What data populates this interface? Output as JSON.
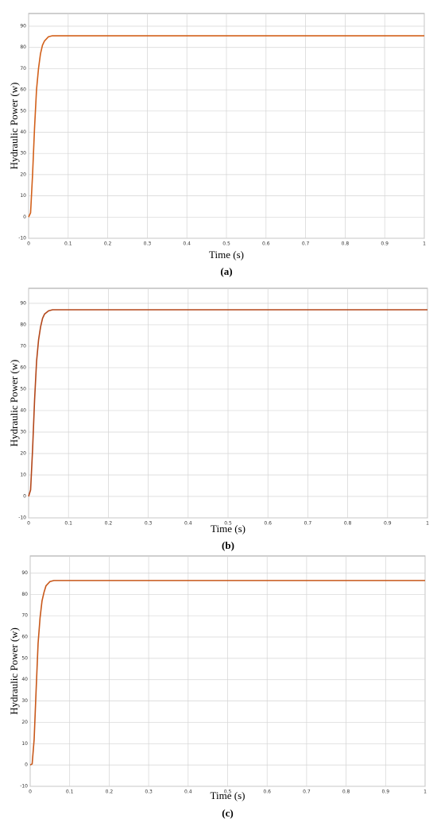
{
  "chart_data": [
    {
      "type": "line",
      "caption": "(a)",
      "xlabel": "Time (s)",
      "ylabel": "Hydraulic Power (w)",
      "color": "#d2601a",
      "grid": true,
      "x": [
        0,
        0.005,
        0.01,
        0.015,
        0.02,
        0.025,
        0.03,
        0.035,
        0.04,
        0.05,
        0.06,
        0.1,
        0.2,
        0.3,
        0.4,
        0.5,
        0.6,
        0.7,
        0.8,
        0.9,
        1
      ],
      "values": [
        0,
        2,
        20,
        42,
        60,
        70,
        77,
        81,
        83,
        85,
        85.5,
        85.5,
        85.5,
        85.5,
        85.5,
        85.5,
        85.5,
        85.5,
        85.5,
        85.5,
        85.5
      ],
      "xlim": [
        0,
        1
      ],
      "xticks": [
        0,
        0.1,
        0.2,
        0.3,
        0.4,
        0.5,
        0.6,
        0.7,
        0.8,
        0.9,
        1
      ],
      "ylim": [
        -10,
        96
      ],
      "yticks": [
        -10,
        0,
        10,
        20,
        30,
        40,
        50,
        60,
        70,
        80,
        90
      ]
    },
    {
      "type": "line",
      "caption": "(b)",
      "xlabel": "Time (s)",
      "ylabel": "Hydraulic Power (w)",
      "color": "#b3471a",
      "grid": true,
      "x": [
        0,
        0.005,
        0.01,
        0.015,
        0.02,
        0.025,
        0.03,
        0.035,
        0.04,
        0.05,
        0.06,
        0.1,
        0.2,
        0.3,
        0.4,
        0.5,
        0.6,
        0.7,
        0.8,
        0.9,
        1
      ],
      "values": [
        0,
        3,
        22,
        45,
        63,
        73,
        79,
        83,
        85,
        86.5,
        87,
        87,
        87,
        87,
        87,
        87,
        87,
        87,
        87,
        87,
        87
      ],
      "xlim": [
        0,
        1
      ],
      "xticks": [
        0,
        0.1,
        0.2,
        0.3,
        0.4,
        0.5,
        0.6,
        0.7,
        0.8,
        0.9,
        1
      ],
      "ylim": [
        -10,
        97
      ],
      "yticks": [
        -10,
        0,
        10,
        20,
        30,
        40,
        50,
        60,
        70,
        80,
        90
      ]
    },
    {
      "type": "line",
      "caption": "(c)",
      "xlabel": "Time (s)",
      "ylabel": "Hydraulic Power (w)",
      "color": "#c8581a",
      "grid": true,
      "x": [
        0,
        0.005,
        0.01,
        0.015,
        0.02,
        0.025,
        0.03,
        0.035,
        0.04,
        0.05,
        0.06,
        0.1,
        0.2,
        0.3,
        0.4,
        0.5,
        0.6,
        0.7,
        0.8,
        0.9,
        1
      ],
      "values": [
        0,
        0.5,
        12,
        35,
        57,
        69,
        77,
        81,
        84,
        86,
        86.5,
        86.5,
        86.5,
        86.5,
        86.5,
        86.5,
        86.5,
        86.5,
        86.5,
        86.5,
        86.5
      ],
      "xlim": [
        0,
        1
      ],
      "xticks": [
        0,
        0.1,
        0.2,
        0.3,
        0.4,
        0.5,
        0.6,
        0.7,
        0.8,
        0.9,
        1
      ],
      "ylim": [
        -10,
        98
      ],
      "yticks": [
        -10,
        0,
        10,
        20,
        30,
        40,
        50,
        60,
        70,
        80,
        90
      ]
    }
  ]
}
